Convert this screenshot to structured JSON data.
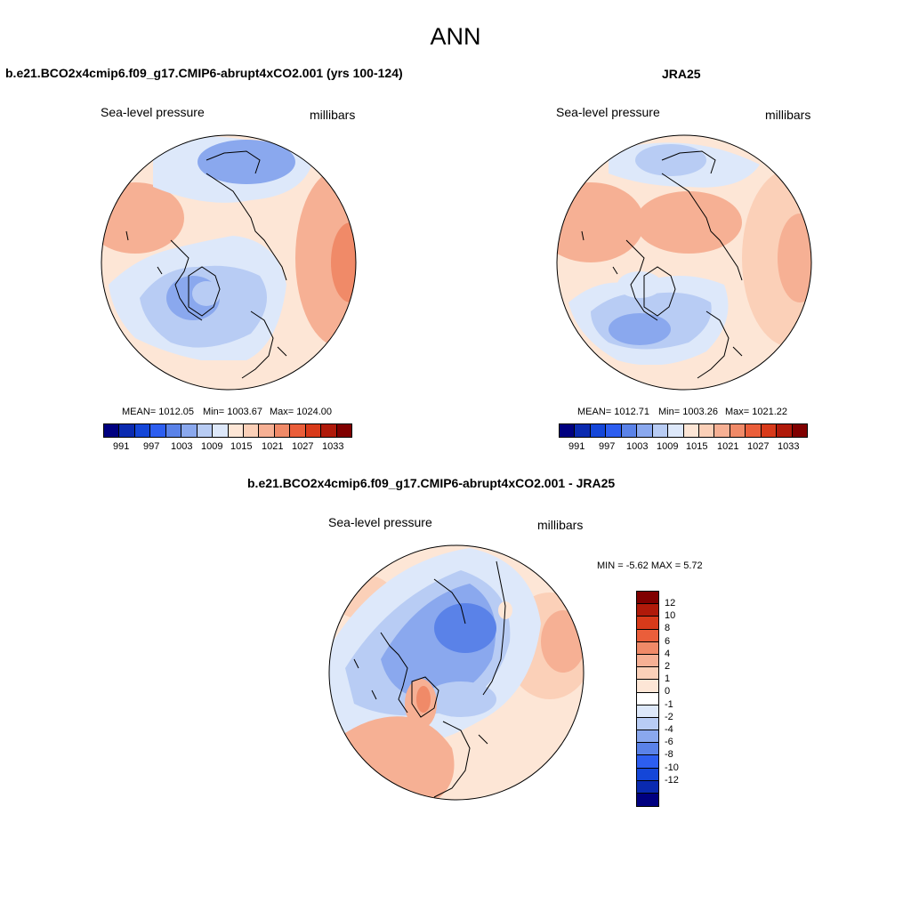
{
  "figure_title": "ANN",
  "panels": [
    {
      "title": "b.e21.BCO2x4cmip6.f09_g17.CMIP6-abrupt4xCO2.001 (yrs 100-124)",
      "variable": "Sea-level pressure",
      "units": "millibars",
      "mean": "MEAN= 1012.05",
      "min": "Min= 1003.67",
      "max": "Max= 1024.00"
    },
    {
      "title": "JRA25",
      "variable": "Sea-level pressure",
      "units": "millibars",
      "mean": "MEAN= 1012.71",
      "min": "Min= 1003.26",
      "max": "Max= 1021.22"
    },
    {
      "title": "b.e21.BCO2x4cmip6.f09_g17.CMIP6-abrupt4xCO2.001 - JRA25",
      "variable": "Sea-level pressure",
      "units": "millibars",
      "minmax": "MIN =  -5.62 MAX =   5.72"
    }
  ],
  "abs_colorbar": {
    "labels": [
      "991",
      "997",
      "1003",
      "1009",
      "1015",
      "1021",
      "1027",
      "1033"
    ],
    "colors": [
      "#000080",
      "#0a2ab0",
      "#1446d8",
      "#2d5ef0",
      "#5a82e8",
      "#8aa8ee",
      "#b8ccf4",
      "#dde8fa",
      "#fde6d6",
      "#fbd0b8",
      "#f6b094",
      "#f08a68",
      "#ea5e3a",
      "#d83a1a",
      "#b01a0a",
      "#800000"
    ]
  },
  "diff_colorbar": {
    "labels": [
      "12",
      "10",
      "8",
      "6",
      "4",
      "2",
      "1",
      "0",
      "-1",
      "-2",
      "-4",
      "-6",
      "-8",
      "-10",
      "-12"
    ],
    "colors": [
      "#800000",
      "#b01a0a",
      "#d83a1a",
      "#ea5e3a",
      "#f08a68",
      "#f6b094",
      "#fbd0b8",
      "#fde6d6",
      "#ffffff",
      "#dde8fa",
      "#b8ccf4",
      "#8aa8ee",
      "#5a82e8",
      "#2d5ef0",
      "#1446d8",
      "#0a2ab0",
      "#000080"
    ]
  }
}
